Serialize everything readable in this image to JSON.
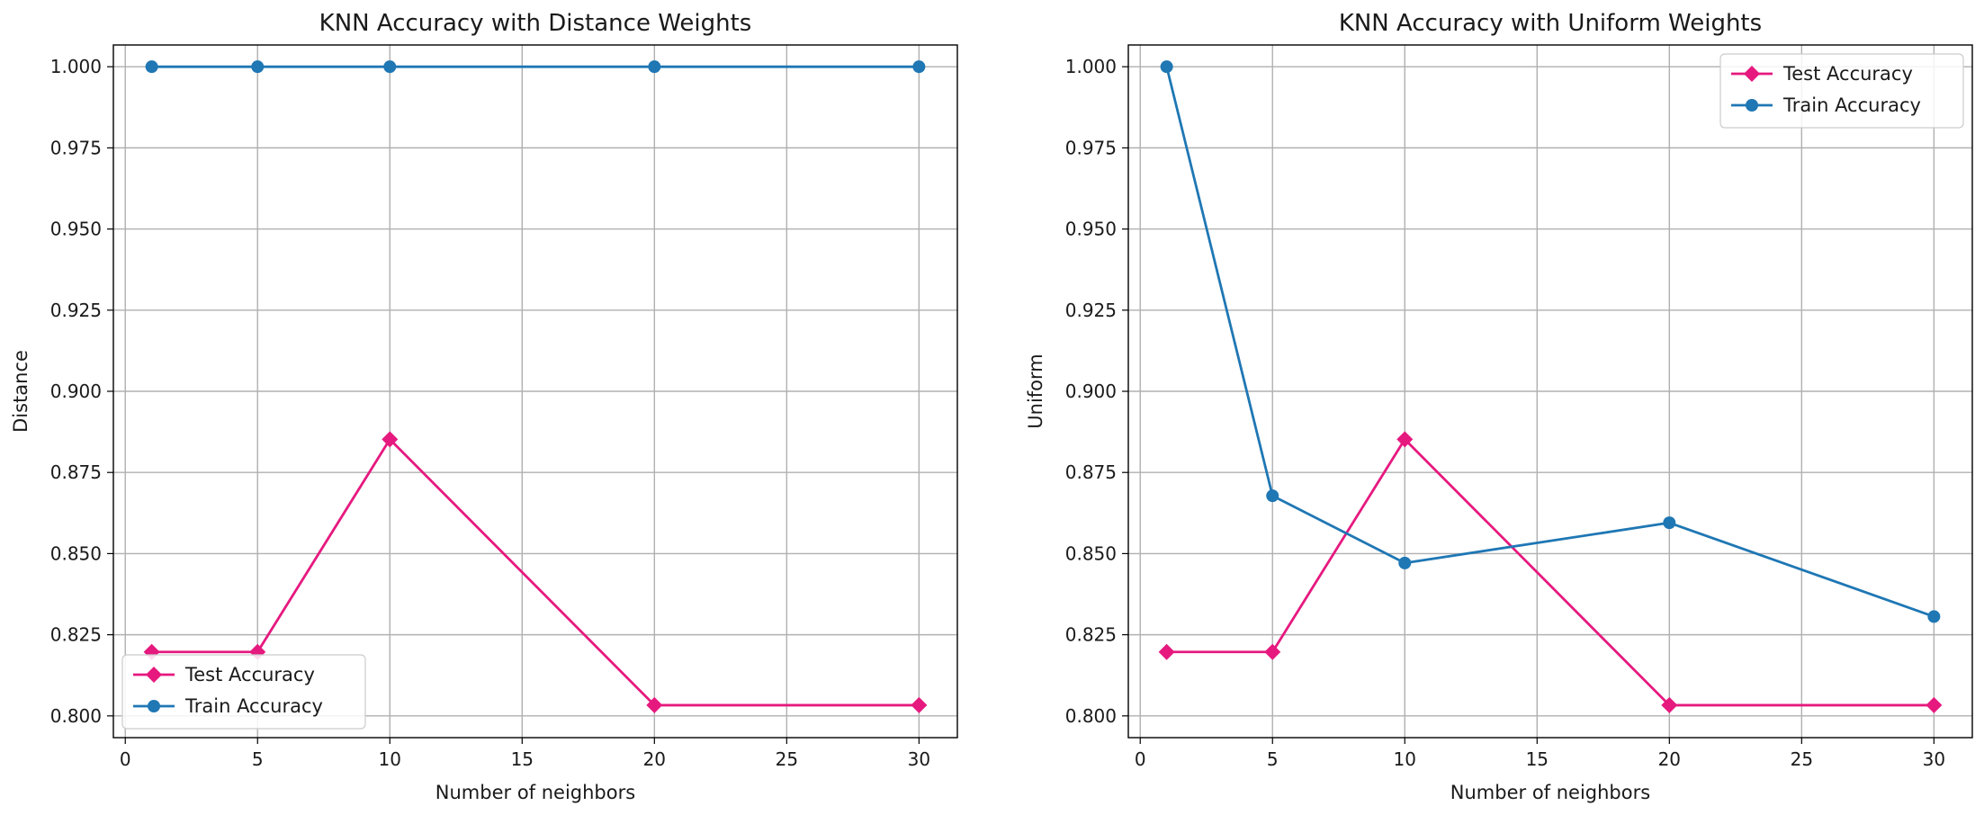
{
  "figure": {
    "background": "#ffffff"
  },
  "colors": {
    "test": "#e6197f",
    "train": "#1f77b4",
    "grid": "#b0b0b0",
    "axis": "#000000"
  },
  "chart_data": [
    {
      "type": "line",
      "title": "KNN Accuracy with Distance Weights",
      "xlabel": "Number of neighbors",
      "ylabel": "Distance",
      "x": [
        1,
        5,
        10,
        20,
        30
      ],
      "xlim": [
        -0.45,
        31.45
      ],
      "ylim": [
        0.7933,
        1.0067
      ],
      "xticks": [
        0,
        5,
        10,
        15,
        20,
        25,
        30
      ],
      "yticks": [
        0.8,
        0.825,
        0.85,
        0.875,
        0.9,
        0.925,
        0.95,
        0.975,
        1.0
      ],
      "grid": true,
      "legend": "lower-left",
      "series": [
        {
          "name": "Test Accuracy",
          "marker": "diamond",
          "color": "#e6197f",
          "values": [
            0.8197,
            0.8197,
            0.8852,
            0.8033,
            0.8033
          ]
        },
        {
          "name": "Train Accuracy",
          "marker": "circle",
          "color": "#1f77b4",
          "values": [
            1.0,
            1.0,
            1.0,
            1.0,
            1.0
          ]
        }
      ]
    },
    {
      "type": "line",
      "title": "KNN Accuracy with Uniform Weights",
      "xlabel": "Number of neighbors",
      "ylabel": "Uniform",
      "x": [
        1,
        5,
        10,
        20,
        30
      ],
      "xlim": [
        -0.45,
        31.45
      ],
      "ylim": [
        0.7933,
        1.0067
      ],
      "xticks": [
        0,
        5,
        10,
        15,
        20,
        25,
        30
      ],
      "yticks": [
        0.8,
        0.825,
        0.85,
        0.875,
        0.9,
        0.925,
        0.95,
        0.975,
        1.0
      ],
      "grid": true,
      "legend": "upper-right",
      "series": [
        {
          "name": "Test Accuracy",
          "marker": "diamond",
          "color": "#e6197f",
          "values": [
            0.8197,
            0.8197,
            0.8852,
            0.8033,
            0.8033
          ]
        },
        {
          "name": "Train Accuracy",
          "marker": "circle",
          "color": "#1f77b4",
          "values": [
            1.0,
            0.8678,
            0.8471,
            0.8595,
            0.8306
          ]
        }
      ]
    }
  ]
}
